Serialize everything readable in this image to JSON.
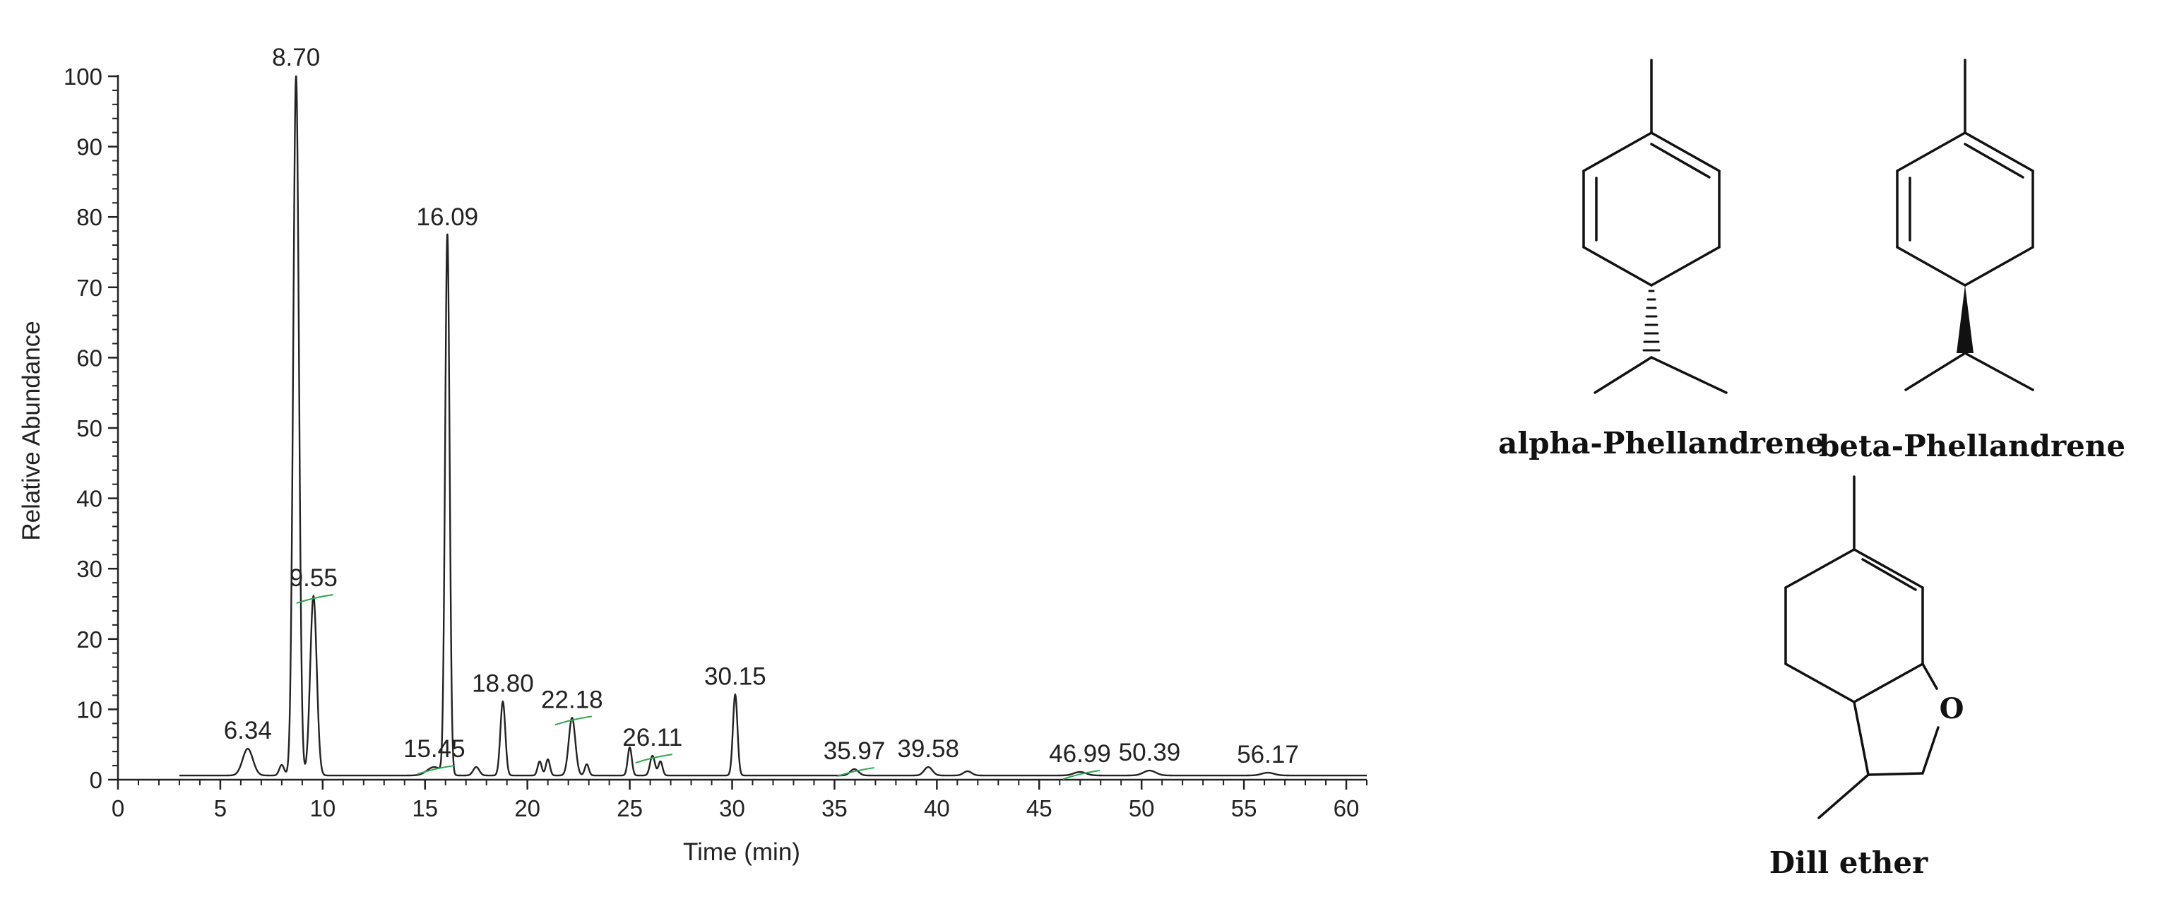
{
  "chart_data": {
    "type": "line",
    "title": "",
    "xlabel": "Time (min)",
    "ylabel": "Relative Abundance",
    "xlim": [
      0,
      61
    ],
    "ylim": [
      0,
      100
    ],
    "xticks": [
      0,
      5,
      10,
      15,
      20,
      25,
      30,
      35,
      40,
      45,
      50,
      55,
      60
    ],
    "yticks": [
      0,
      10,
      20,
      30,
      40,
      50,
      60,
      70,
      80,
      90,
      100
    ],
    "grid": false,
    "baseline": 0.6,
    "trace_start": 3.0,
    "trace_end": 61.0,
    "peaks": [
      {
        "rt": 6.34,
        "height": 3.8,
        "width": 0.25,
        "label": "6.34"
      },
      {
        "rt": 8.0,
        "height": 1.5,
        "width": 0.12,
        "label": ""
      },
      {
        "rt": 8.7,
        "height": 99.5,
        "width": 0.14,
        "label": "8.70"
      },
      {
        "rt": 9.55,
        "height": 25.5,
        "width": 0.16,
        "label": "9.55"
      },
      {
        "rt": 15.45,
        "height": 1.2,
        "width": 0.35,
        "label": "15.45"
      },
      {
        "rt": 16.09,
        "height": 76.8,
        "width": 0.11,
        "label": "16.09"
      },
      {
        "rt": 17.5,
        "height": 1.2,
        "width": 0.15,
        "label": ""
      },
      {
        "rt": 18.8,
        "height": 10.5,
        "width": 0.12,
        "label": "18.80"
      },
      {
        "rt": 20.6,
        "height": 2.0,
        "width": 0.1,
        "label": ""
      },
      {
        "rt": 21.0,
        "height": 2.3,
        "width": 0.1,
        "label": ""
      },
      {
        "rt": 22.18,
        "height": 8.2,
        "width": 0.16,
        "label": "22.18"
      },
      {
        "rt": 22.9,
        "height": 1.6,
        "width": 0.1,
        "label": ""
      },
      {
        "rt": 25.0,
        "height": 4.0,
        "width": 0.1,
        "label": ""
      },
      {
        "rt": 26.11,
        "height": 2.8,
        "width": 0.12,
        "label": "26.11"
      },
      {
        "rt": 26.5,
        "height": 2.0,
        "width": 0.1,
        "label": ""
      },
      {
        "rt": 30.15,
        "height": 11.5,
        "width": 0.11,
        "label": "30.15"
      },
      {
        "rt": 35.97,
        "height": 0.9,
        "width": 0.2,
        "label": "35.97"
      },
      {
        "rt": 39.58,
        "height": 1.2,
        "width": 0.2,
        "label": "39.58"
      },
      {
        "rt": 41.5,
        "height": 0.6,
        "width": 0.2,
        "label": ""
      },
      {
        "rt": 46.99,
        "height": 0.5,
        "width": 0.3,
        "label": "46.99"
      },
      {
        "rt": 50.39,
        "height": 0.7,
        "width": 0.3,
        "label": "50.39"
      },
      {
        "rt": 56.17,
        "height": 0.4,
        "width": 0.3,
        "label": "56.17"
      }
    ]
  },
  "structures": [
    {
      "name": "alpha-Phellandrene"
    },
    {
      "name": "beta-Phellandrene"
    },
    {
      "name": "Dill ether",
      "heteroatom": "O"
    }
  ],
  "colors": {
    "trace": "#222222",
    "axis": "#222222",
    "integration_marks": "#2fa84f"
  }
}
